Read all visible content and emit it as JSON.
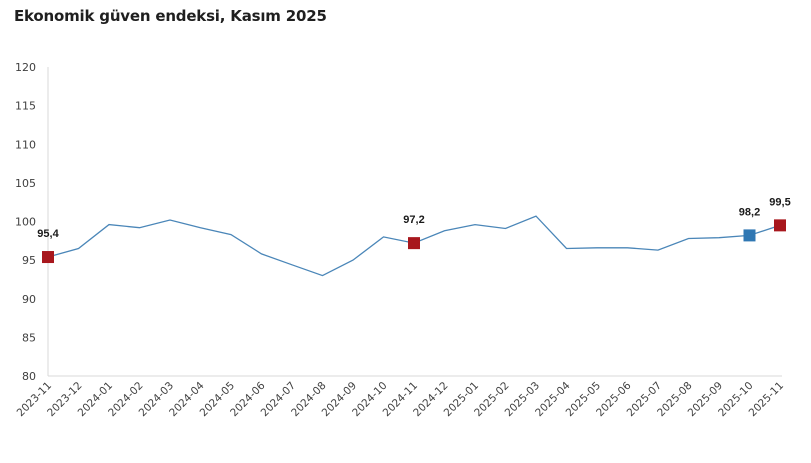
{
  "title": "Ekonomik güven endeksi, Kasım 2025",
  "colors": {
    "line": "#4a86b8",
    "highlight_red": "#a8171d",
    "highlight_blue": "#2f77b3",
    "axis": "#d9d9d9"
  },
  "chart_data": {
    "type": "line",
    "title": "Ekonomik güven endeksi, Kasım 2025",
    "xlabel": "",
    "ylabel": "",
    "ylim": [
      80,
      120
    ],
    "yticks": [
      80,
      85,
      90,
      95,
      100,
      105,
      110,
      115,
      120
    ],
    "grid": false,
    "legend": null,
    "categories": [
      "2023-11",
      "2023-12",
      "2024-01",
      "2024-02",
      "2024-03",
      "2024-04",
      "2024-05",
      "2024-06",
      "2024-07",
      "2024-08",
      "2024-09",
      "2024-10",
      "2024-11",
      "2024-12",
      "2025-01",
      "2025-02",
      "2025-03",
      "2025-04",
      "2025-05",
      "2025-06",
      "2025-07",
      "2025-08",
      "2025-09",
      "2025-10",
      "2025-11"
    ],
    "series": [
      {
        "name": "Ekonomik güven endeksi",
        "values": [
          95.4,
          96.5,
          99.6,
          99.2,
          100.2,
          99.2,
          98.3,
          95.8,
          94.4,
          93.0,
          95.0,
          98.0,
          97.2,
          98.8,
          99.6,
          99.1,
          100.7,
          96.5,
          96.6,
          96.6,
          96.3,
          97.8,
          97.9,
          98.2,
          99.5
        ]
      }
    ],
    "annotations": [
      {
        "index": 0,
        "label": "95,4",
        "marker": "red-square"
      },
      {
        "index": 12,
        "label": "97,2",
        "marker": "red-square"
      },
      {
        "index": 23,
        "label": "98,2",
        "marker": "blue-square"
      },
      {
        "index": 24,
        "label": "99,5",
        "marker": "red-square"
      }
    ]
  }
}
